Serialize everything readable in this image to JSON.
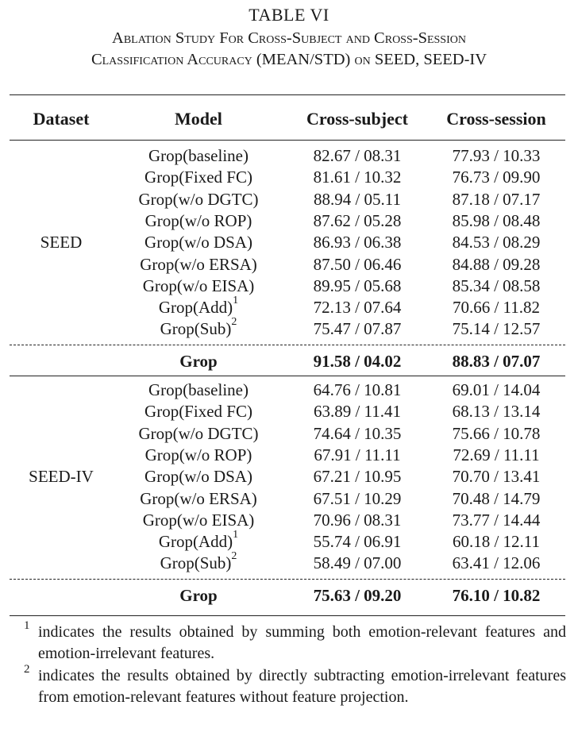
{
  "caption": {
    "table_number": "TABLE VI",
    "line1": "Ablation Study For Cross-Subject and Cross-Session",
    "line2": "Classification Accuracy (MEAN/STD) on SEED, SEED-IV"
  },
  "headers": [
    "Dataset",
    "Model",
    "Cross-subject",
    "Cross-session"
  ],
  "groups": [
    {
      "dataset": "SEED",
      "rows": [
        {
          "model": "Grop(baseline)",
          "sup": "",
          "cs": "82.67 / 08.31",
          "cx": "77.93 / 10.33"
        },
        {
          "model": "Grop(Fixed FC)",
          "sup": "",
          "cs": "81.61 / 10.32",
          "cx": "76.73 / 09.90"
        },
        {
          "model": "Grop(w/o DGTC)",
          "sup": "",
          "cs": "88.94 / 05.11",
          "cx": "87.18 / 07.17"
        },
        {
          "model": "Grop(w/o ROP)",
          "sup": "",
          "cs": "87.62 / 05.28",
          "cx": "85.98 / 08.48"
        },
        {
          "model": "Grop(w/o DSA)",
          "sup": "",
          "cs": "86.93 / 06.38",
          "cx": "84.53 / 08.29"
        },
        {
          "model": "Grop(w/o ERSA)",
          "sup": "",
          "cs": "87.50 / 06.46",
          "cx": "84.88 / 09.28"
        },
        {
          "model": "Grop(w/o EISA)",
          "sup": "",
          "cs": "89.95 / 05.68",
          "cx": "85.34 / 08.58"
        },
        {
          "model": "Grop(Add)",
          "sup": "1",
          "cs": "72.13 / 07.64",
          "cx": "70.66 / 11.82"
        },
        {
          "model": "Grop(Sub)",
          "sup": "2",
          "cs": "75.47 / 07.87",
          "cx": "75.14 / 12.57"
        }
      ],
      "final": {
        "model": "Grop",
        "cs": "91.58 / 04.02",
        "cx": "88.83 / 07.07"
      }
    },
    {
      "dataset": "SEED-IV",
      "rows": [
        {
          "model": "Grop(baseline)",
          "sup": "",
          "cs": "64.76 / 10.81",
          "cx": "69.01 / 14.04"
        },
        {
          "model": "Grop(Fixed FC)",
          "sup": "",
          "cs": "63.89 / 11.41",
          "cx": "68.13 / 13.14"
        },
        {
          "model": "Grop(w/o DGTC)",
          "sup": "",
          "cs": "74.64 / 10.35",
          "cx": "75.66 / 10.78"
        },
        {
          "model": "Grop(w/o ROP)",
          "sup": "",
          "cs": "67.91 / 11.11",
          "cx": "72.69 / 11.11"
        },
        {
          "model": "Grop(w/o DSA)",
          "sup": "",
          "cs": "67.21 / 10.95",
          "cx": "70.70 / 13.41"
        },
        {
          "model": "Grop(w/o ERSA)",
          "sup": "",
          "cs": "67.51 / 10.29",
          "cx": "70.48 / 14.79"
        },
        {
          "model": "Grop(w/o EISA)",
          "sup": "",
          "cs": "70.96 / 08.31",
          "cx": "73.77 / 14.44"
        },
        {
          "model": "Grop(Add)",
          "sup": "1",
          "cs": "55.74 / 06.91",
          "cx": "60.18 / 12.11"
        },
        {
          "model": "Grop(Sub)",
          "sup": "2",
          "cs": "58.49 / 07.00",
          "cx": "63.41 / 12.06"
        }
      ],
      "final": {
        "model": "Grop",
        "cs": "75.63 / 09.20",
        "cx": "76.10 / 10.82"
      }
    }
  ],
  "footnotes": [
    {
      "mark": "1",
      "text": "indicates the results obtained by summing both emotion-relevant features and emotion-irrelevant features."
    },
    {
      "mark": "2",
      "text": "indicates the results obtained by directly subtracting emotion-irrelevant features from emotion-relevant features without feature projection."
    }
  ]
}
